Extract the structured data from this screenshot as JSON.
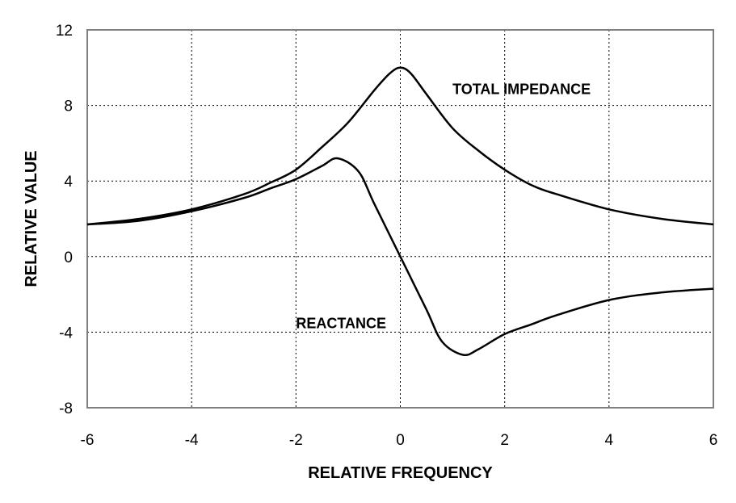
{
  "chart_data": {
    "type": "line",
    "title": "",
    "xlabel": "RELATIVE FREQUENCY",
    "ylabel": "RELATIVE VALUE",
    "xlim": [
      -6,
      6
    ],
    "ylim": [
      -8,
      12
    ],
    "xticks": [
      -6,
      -4,
      -2,
      0,
      2,
      4,
      6
    ],
    "yticks": [
      -8,
      -4,
      0,
      4,
      8,
      12
    ],
    "grid": true,
    "series": [
      {
        "name": "TOTAL IMPEDANCE",
        "color": "#000000",
        "points": [
          [
            -6,
            1.7
          ],
          [
            -5,
            2.0
          ],
          [
            -4,
            2.5
          ],
          [
            -3,
            3.3
          ],
          [
            -2.5,
            3.9
          ],
          [
            -2,
            4.6
          ],
          [
            -1.5,
            5.8
          ],
          [
            -1,
            7.1
          ],
          [
            -0.5,
            8.8
          ],
          [
            -0.2,
            9.7
          ],
          [
            0,
            10.0
          ],
          [
            0.2,
            9.7
          ],
          [
            0.5,
            8.6
          ],
          [
            1,
            6.8
          ],
          [
            1.5,
            5.6
          ],
          [
            2,
            4.6
          ],
          [
            2.5,
            3.8
          ],
          [
            3,
            3.3
          ],
          [
            4,
            2.5
          ],
          [
            5,
            2.0
          ],
          [
            6,
            1.7
          ]
        ]
      },
      {
        "name": "REACTANCE",
        "color": "#000000",
        "points": [
          [
            -6,
            1.7
          ],
          [
            -5,
            1.9
          ],
          [
            -4,
            2.4
          ],
          [
            -3,
            3.1
          ],
          [
            -2.5,
            3.6
          ],
          [
            -2,
            4.1
          ],
          [
            -1.5,
            4.8
          ],
          [
            -1.2,
            5.2
          ],
          [
            -0.8,
            4.5
          ],
          [
            -0.5,
            2.8
          ],
          [
            0,
            0.0
          ],
          [
            0.5,
            -2.8
          ],
          [
            0.8,
            -4.5
          ],
          [
            1.2,
            -5.2
          ],
          [
            1.5,
            -4.9
          ],
          [
            2,
            -4.1
          ],
          [
            2.5,
            -3.6
          ],
          [
            3,
            -3.1
          ],
          [
            4,
            -2.3
          ],
          [
            5,
            -1.9
          ],
          [
            6,
            -1.7
          ]
        ]
      }
    ],
    "annotations": [
      {
        "text": "TOTAL IMPEDANCE",
        "x": 1.0,
        "y": 8.6
      },
      {
        "text": "REACTANCE",
        "x": -2.0,
        "y": -3.8
      }
    ]
  }
}
